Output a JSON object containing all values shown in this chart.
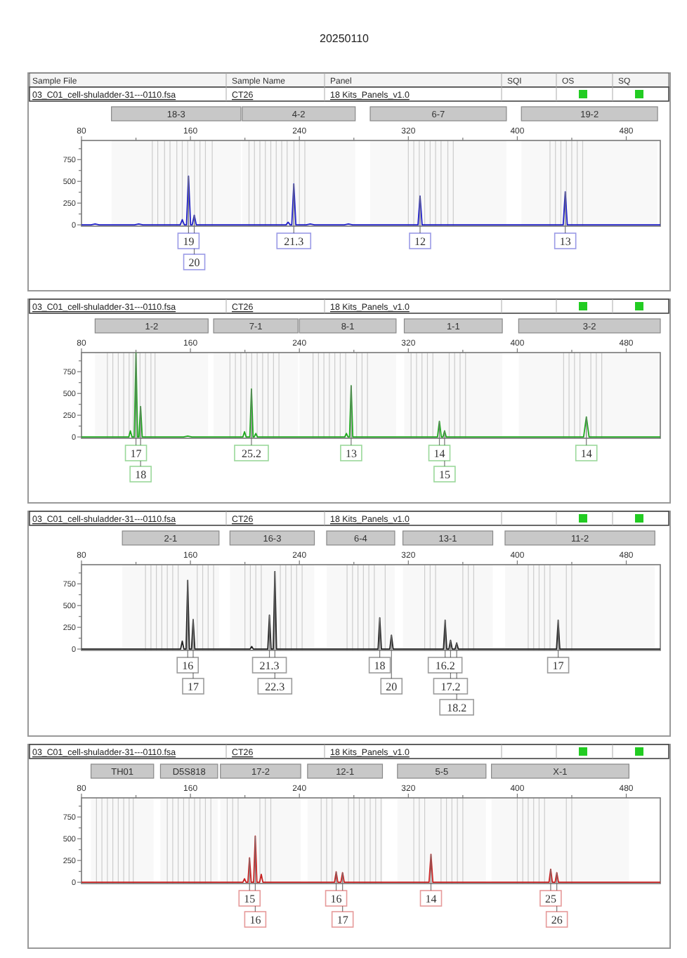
{
  "chart_data": [
    {
      "type": "line",
      "title": "20250110",
      "xlim": [
        80,
        505
      ],
      "ylim": [
        -15,
        970
      ],
      "xticks": [
        80,
        {
          "value": 120,
          "label": null
        },
        160,
        {
          "value": 200,
          "label": null
        },
        240,
        {
          "value": 280,
          "label": null
        },
        320,
        {
          "value": 360,
          "label": null
        },
        400,
        {
          "value": 440,
          "label": null
        },
        480
      ],
      "yticks": [
        0,
        {
          "value": 125,
          "label": null
        },
        250,
        {
          "value": 375,
          "label": null
        },
        500,
        {
          "value": 625,
          "label": null
        },
        750,
        {
          "value": 875,
          "label": null
        }
      ],
      "annotations": [
        "Sample File",
        "Sample Name",
        "Panel",
        "SQI",
        "OS",
        "SQ",
        "03_C01_cell-shuladder-31---0110.fsa",
        "CT26",
        "18 Kits_Panels_v1.0",
        {
          "text": "19",
          "x": 158.6,
          "y": 560
        },
        {
          "text": "20",
          "x": 162.8,
          "y": 110
        },
        {
          "text": "21.3",
          "x": 235.9,
          "y": 470
        },
        {
          "text": "12",
          "x": 328.6,
          "y": 330
        },
        {
          "text": "13",
          "x": 435.2,
          "y": 380
        }
      ],
      "bands": [
        {
          "axis": "x",
          "from": 102,
          "to": 197,
          "label": "18-3",
          "color": "#c8c8c8"
        },
        {
          "axis": "x",
          "from": 198,
          "to": 281,
          "label": "4-2",
          "color": "#c8c8c8"
        },
        {
          "axis": "x",
          "from": 292,
          "to": 392,
          "label": "6-7",
          "color": "#c8c8c8"
        },
        {
          "axis": "x",
          "from": 403,
          "to": 503,
          "label": "19-2",
          "color": "#c8c8c8"
        }
      ],
      "ref_lines": [
        {
          "axis": "x",
          "value": 132,
          "color": "#cccccc"
        },
        {
          "axis": "x",
          "value": 136,
          "color": "#cccccc"
        },
        {
          "axis": "x",
          "value": 141,
          "color": "#cccccc"
        },
        {
          "axis": "x",
          "value": 145,
          "color": "#cccccc"
        },
        {
          "axis": "x",
          "value": 150,
          "color": "#cccccc"
        },
        {
          "axis": "x",
          "value": 154,
          "color": "#cccccc"
        },
        {
          "axis": "x",
          "value": 158,
          "color": "#cccccc"
        },
        {
          "axis": "x",
          "value": 163,
          "color": "#cccccc"
        },
        {
          "axis": "x",
          "value": 167,
          "color": "#cccccc"
        },
        {
          "axis": "x",
          "value": 171,
          "color": "#cccccc"
        },
        {
          "axis": "x",
          "value": 176,
          "color": "#cccccc"
        },
        {
          "axis": "x",
          "value": 203,
          "color": "#cccccc"
        },
        {
          "axis": "x",
          "value": 207,
          "color": "#cccccc"
        },
        {
          "axis": "x",
          "value": 211,
          "color": "#cccccc"
        },
        {
          "axis": "x",
          "value": 215,
          "color": "#cccccc"
        },
        {
          "axis": "x",
          "value": 219,
          "color": "#cccccc"
        },
        {
          "axis": "x",
          "value": 223,
          "color": "#cccccc"
        },
        {
          "axis": "x",
          "value": 227,
          "color": "#cccccc"
        },
        {
          "axis": "x",
          "value": 231,
          "color": "#cccccc"
        },
        {
          "axis": "x",
          "value": 236,
          "color": "#cccccc"
        },
        {
          "axis": "x",
          "value": 240,
          "color": "#cccccc"
        },
        {
          "axis": "x",
          "value": 244,
          "color": "#cccccc"
        },
        {
          "axis": "x",
          "value": 320,
          "color": "#cccccc"
        },
        {
          "axis": "x",
          "value": 324,
          "color": "#cccccc"
        },
        {
          "axis": "x",
          "value": 328,
          "color": "#cccccc"
        },
        {
          "axis": "x",
          "value": 332,
          "color": "#cccccc"
        },
        {
          "axis": "x",
          "value": 336,
          "color": "#cccccc"
        },
        {
          "axis": "x",
          "value": 340,
          "color": "#cccccc"
        },
        {
          "axis": "x",
          "value": 344,
          "color": "#cccccc"
        },
        {
          "axis": "x",
          "value": 349,
          "color": "#cccccc"
        },
        {
          "axis": "x",
          "value": 353,
          "color": "#cccccc"
        },
        {
          "axis": "x",
          "value": 424,
          "color": "#cccccc"
        },
        {
          "axis": "x",
          "value": 428,
          "color": "#cccccc"
        },
        {
          "axis": "x",
          "value": 432,
          "color": "#cccccc"
        },
        {
          "axis": "x",
          "value": 436,
          "color": "#cccccc"
        },
        {
          "axis": "x",
          "value": 440,
          "color": "#cccccc"
        },
        {
          "axis": "x",
          "value": 444,
          "color": "#cccccc"
        },
        {
          "axis": "x",
          "value": 448,
          "color": "#cccccc"
        }
      ],
      "series": [
        {
          "color": "#2020c8",
          "x": [
            80,
            87,
            90,
            93,
            119,
            122,
            125,
            152.5,
            154,
            155.5,
            157.1,
            158.6,
            160.1,
            161.3,
            162.8,
            164.3,
            230.2,
            231.7,
            233.2,
            234.4,
            235.9,
            237.4,
            245,
            248,
            251,
            273,
            276,
            279,
            327.1,
            328.6,
            330.1,
            433.7,
            435.2,
            436.7,
            505
          ],
          "values": [
            0,
            0,
            10,
            0,
            0,
            10,
            0,
            0,
            60,
            0,
            0,
            560,
            0,
            0,
            110,
            0,
            0,
            30,
            0,
            0,
            470,
            0,
            0,
            10,
            0,
            0,
            10,
            0,
            0,
            330,
            0,
            0,
            380,
            0,
            0
          ]
        }
      ]
    },
    {
      "type": "line",
      "xlim": [
        80,
        505
      ],
      "ylim": [
        -15,
        970
      ],
      "xticks": [
        80,
        {
          "value": 120,
          "label": null
        },
        160,
        {
          "value": 200,
          "label": null
        },
        240,
        {
          "value": 280,
          "label": null
        },
        320,
        {
          "value": 360,
          "label": null
        },
        400,
        {
          "value": 440,
          "label": null
        },
        480
      ],
      "yticks": [
        0,
        {
          "value": 125,
          "label": null
        },
        250,
        {
          "value": 375,
          "label": null
        },
        500,
        {
          "value": 625,
          "label": null
        },
        750,
        {
          "value": 875,
          "label": null
        }
      ],
      "annotations": [
        "03_C01_cell-shuladder-31---0110.fsa",
        "CT26",
        "18 Kits_Panels_v1.0",
        {
          "text": "17",
          "x": 120,
          "y": 960
        },
        {
          "text": "18",
          "x": 123.4,
          "y": 350
        },
        {
          "text": "25.2",
          "x": 204.8,
          "y": 550
        },
        {
          "text": "13",
          "x": 278,
          "y": 590
        },
        {
          "text": "14",
          "x": 342.8,
          "y": 180
        },
        {
          "text": "15",
          "x": 346.6,
          "y": 70
        },
        {
          "text": "14",
          "x": 450.7,
          "y": 230
        }
      ],
      "bands": [
        {
          "axis": "x",
          "from": 90,
          "to": 173,
          "label": "1-2",
          "color": "#c8c8c8"
        },
        {
          "axis": "x",
          "from": 177,
          "to": 239,
          "label": "7-1",
          "color": "#c8c8c8"
        },
        {
          "axis": "x",
          "from": 240,
          "to": 311,
          "label": "8-1",
          "color": "#c8c8c8"
        },
        {
          "axis": "x",
          "from": 317,
          "to": 389,
          "label": "1-1",
          "color": "#c8c8c8"
        },
        {
          "axis": "x",
          "from": 401,
          "to": 505,
          "label": "3-2",
          "color": "#c8c8c8"
        }
      ],
      "ref_lines": [
        {
          "axis": "x",
          "value": 99,
          "color": "#cccccc"
        },
        {
          "axis": "x",
          "value": 103,
          "color": "#cccccc"
        },
        {
          "axis": "x",
          "value": 107,
          "color": "#cccccc"
        },
        {
          "axis": "x",
          "value": 111,
          "color": "#cccccc"
        },
        {
          "axis": "x",
          "value": 115,
          "color": "#cccccc"
        },
        {
          "axis": "x",
          "value": 118,
          "color": "#cccccc"
        },
        {
          "axis": "x",
          "value": 123,
          "color": "#cccccc"
        },
        {
          "axis": "x",
          "value": 127,
          "color": "#cccccc"
        },
        {
          "axis": "x",
          "value": 131,
          "color": "#cccccc"
        },
        {
          "axis": "x",
          "value": 134,
          "color": "#cccccc"
        },
        {
          "axis": "x",
          "value": 189,
          "color": "#cccccc"
        },
        {
          "axis": "x",
          "value": 193,
          "color": "#cccccc"
        },
        {
          "axis": "x",
          "value": 197,
          "color": "#cccccc"
        },
        {
          "axis": "x",
          "value": 201,
          "color": "#cccccc"
        },
        {
          "axis": "x",
          "value": 205,
          "color": "#cccccc"
        },
        {
          "axis": "x",
          "value": 209,
          "color": "#cccccc"
        },
        {
          "axis": "x",
          "value": 213,
          "color": "#cccccc"
        },
        {
          "axis": "x",
          "value": 217,
          "color": "#cccccc"
        },
        {
          "axis": "x",
          "value": 221,
          "color": "#cccccc"
        },
        {
          "axis": "x",
          "value": 225,
          "color": "#cccccc"
        },
        {
          "axis": "x",
          "value": 250,
          "color": "#cccccc"
        },
        {
          "axis": "x",
          "value": 254,
          "color": "#cccccc"
        },
        {
          "axis": "x",
          "value": 258,
          "color": "#cccccc"
        },
        {
          "axis": "x",
          "value": 262,
          "color": "#cccccc"
        },
        {
          "axis": "x",
          "value": 266,
          "color": "#cccccc"
        },
        {
          "axis": "x",
          "value": 270,
          "color": "#cccccc"
        },
        {
          "axis": "x",
          "value": 274,
          "color": "#cccccc"
        },
        {
          "axis": "x",
          "value": 282,
          "color": "#cccccc"
        },
        {
          "axis": "x",
          "value": 286,
          "color": "#cccccc"
        },
        {
          "axis": "x",
          "value": 290,
          "color": "#cccccc"
        },
        {
          "axis": "x",
          "value": 322,
          "color": "#cccccc"
        },
        {
          "axis": "x",
          "value": 326,
          "color": "#cccccc"
        },
        {
          "axis": "x",
          "value": 330,
          "color": "#cccccc"
        },
        {
          "axis": "x",
          "value": 334,
          "color": "#cccccc"
        },
        {
          "axis": "x",
          "value": 338,
          "color": "#cccccc"
        },
        {
          "axis": "x",
          "value": 350,
          "color": "#cccccc"
        },
        {
          "axis": "x",
          "value": 354,
          "color": "#cccccc"
        },
        {
          "axis": "x",
          "value": 358,
          "color": "#cccccc"
        },
        {
          "axis": "x",
          "value": 362,
          "color": "#cccccc"
        },
        {
          "axis": "x",
          "value": 434,
          "color": "#cccccc"
        },
        {
          "axis": "x",
          "value": 438,
          "color": "#cccccc"
        },
        {
          "axis": "x",
          "value": 442,
          "color": "#cccccc"
        },
        {
          "axis": "x",
          "value": 446,
          "color": "#cccccc"
        },
        {
          "axis": "x",
          "value": 454,
          "color": "#cccccc"
        },
        {
          "axis": "x",
          "value": 458,
          "color": "#cccccc"
        },
        {
          "axis": "x",
          "value": 462,
          "color": "#cccccc"
        }
      ],
      "series": [
        {
          "color": "#20a820",
          "x": [
            80,
            114.7,
            115.9,
            117.1,
            118.8,
            120,
            121.2,
            122.2,
            123.4,
            124.6,
            155,
            158,
            161,
            198.5,
            199.7,
            200.9,
            203.6,
            204.8,
            206,
            206.8,
            208,
            209.2,
            273.3,
            274.5,
            275.7,
            276.8,
            278,
            279.2,
            341.4,
            342.8,
            344.2,
            345.4,
            346.6,
            347.8,
            448.7,
            450.7,
            452.7,
            505
          ],
          "values": [
            0,
            0,
            70,
            0,
            0,
            960,
            0,
            0,
            350,
            0,
            0,
            10,
            0,
            0,
            60,
            0,
            0,
            550,
            0,
            0,
            40,
            0,
            0,
            40,
            0,
            0,
            590,
            0,
            0,
            180,
            0,
            0,
            70,
            0,
            0,
            230,
            0,
            0
          ]
        }
      ]
    },
    {
      "type": "line",
      "xlim": [
        80,
        505
      ],
      "ylim": [
        -15,
        970
      ],
      "xticks": [
        80,
        {
          "value": 120,
          "label": null
        },
        160,
        {
          "value": 200,
          "label": null
        },
        240,
        {
          "value": 280,
          "label": null
        },
        320,
        {
          "value": 360,
          "label": null
        },
        400,
        {
          "value": 440,
          "label": null
        },
        480
      ],
      "yticks": [
        0,
        {
          "value": 125,
          "label": null
        },
        250,
        {
          "value": 375,
          "label": null
        },
        500,
        {
          "value": 625,
          "label": null
        },
        750,
        {
          "value": 875,
          "label": null
        }
      ],
      "annotations": [
        "03_C01_cell-shuladder-31---0110.fsa",
        "CT26",
        "18 Kits_Panels_v1.0",
        {
          "text": "16",
          "x": 158,
          "y": 790
        },
        {
          "text": "17",
          "x": 162,
          "y": 340
        },
        {
          "text": "21.3",
          "x": 218,
          "y": 390
        },
        {
          "text": "22.3",
          "x": 222,
          "y": 890
        },
        {
          "text": "18",
          "x": 299,
          "y": 360
        },
        {
          "text": "20",
          "x": 307.6,
          "y": 160
        },
        {
          "text": "16.2",
          "x": 347,
          "y": 330
        },
        {
          "text": "17.2",
          "x": 351,
          "y": 100
        },
        {
          "text": "18.2",
          "x": 355.5,
          "y": 70
        },
        {
          "text": "17",
          "x": 430,
          "y": 330
        }
      ],
      "bands": [
        {
          "axis": "x",
          "from": 110,
          "to": 181,
          "label": "2-1",
          "color": "#c8c8c8"
        },
        {
          "axis": "x",
          "from": 189,
          "to": 251,
          "label": "16-3",
          "color": "#c8c8c8"
        },
        {
          "axis": "x",
          "from": 260,
          "to": 310,
          "label": "6-4",
          "color": "#c8c8c8"
        },
        {
          "axis": "x",
          "from": 316,
          "to": 382,
          "label": "13-1",
          "color": "#c8c8c8"
        },
        {
          "axis": "x",
          "from": 391,
          "to": 501,
          "label": "11-2",
          "color": "#c8c8c8"
        }
      ],
      "ref_lines": [
        {
          "axis": "x",
          "value": 127,
          "color": "#cccccc"
        },
        {
          "axis": "x",
          "value": 131,
          "color": "#cccccc"
        },
        {
          "axis": "x",
          "value": 135,
          "color": "#cccccc"
        },
        {
          "axis": "x",
          "value": 139,
          "color": "#cccccc"
        },
        {
          "axis": "x",
          "value": 143,
          "color": "#cccccc"
        },
        {
          "axis": "x",
          "value": 147,
          "color": "#cccccc"
        },
        {
          "axis": "x",
          "value": 151,
          "color": "#cccccc"
        },
        {
          "axis": "x",
          "value": 165,
          "color": "#cccccc"
        },
        {
          "axis": "x",
          "value": 169,
          "color": "#cccccc"
        },
        {
          "axis": "x",
          "value": 173,
          "color": "#cccccc"
        },
        {
          "axis": "x",
          "value": 177,
          "color": "#cccccc"
        },
        {
          "axis": "x",
          "value": 200,
          "color": "#cccccc"
        },
        {
          "axis": "x",
          "value": 204,
          "color": "#cccccc"
        },
        {
          "axis": "x",
          "value": 208,
          "color": "#cccccc"
        },
        {
          "axis": "x",
          "value": 212,
          "color": "#cccccc"
        },
        {
          "axis": "x",
          "value": 226,
          "color": "#cccccc"
        },
        {
          "axis": "x",
          "value": 230,
          "color": "#cccccc"
        },
        {
          "axis": "x",
          "value": 234,
          "color": "#cccccc"
        },
        {
          "axis": "x",
          "value": 238,
          "color": "#cccccc"
        },
        {
          "axis": "x",
          "value": 242,
          "color": "#cccccc"
        },
        {
          "axis": "x",
          "value": 275,
          "color": "#cccccc"
        },
        {
          "axis": "x",
          "value": 279,
          "color": "#cccccc"
        },
        {
          "axis": "x",
          "value": 283,
          "color": "#cccccc"
        },
        {
          "axis": "x",
          "value": 287,
          "color": "#cccccc"
        },
        {
          "axis": "x",
          "value": 291,
          "color": "#cccccc"
        },
        {
          "axis": "x",
          "value": 295,
          "color": "#cccccc"
        },
        {
          "axis": "x",
          "value": 303,
          "color": "#cccccc"
        },
        {
          "axis": "x",
          "value": 332,
          "color": "#cccccc"
        },
        {
          "axis": "x",
          "value": 336,
          "color": "#cccccc"
        },
        {
          "axis": "x",
          "value": 340,
          "color": "#cccccc"
        },
        {
          "axis": "x",
          "value": 360,
          "color": "#cccccc"
        },
        {
          "axis": "x",
          "value": 364,
          "color": "#cccccc"
        },
        {
          "axis": "x",
          "value": 368,
          "color": "#cccccc"
        },
        {
          "axis": "x",
          "value": 408,
          "color": "#cccccc"
        },
        {
          "axis": "x",
          "value": 412,
          "color": "#cccccc"
        },
        {
          "axis": "x",
          "value": 416,
          "color": "#cccccc"
        },
        {
          "axis": "x",
          "value": 420,
          "color": "#cccccc"
        },
        {
          "axis": "x",
          "value": 424,
          "color": "#cccccc"
        },
        {
          "axis": "x",
          "value": 436,
          "color": "#cccccc"
        },
        {
          "axis": "x",
          "value": 440,
          "color": "#cccccc"
        }
      ],
      "series": [
        {
          "color": "#222222",
          "x": [
            80,
            152.8,
            154,
            155.2,
            156.8,
            158,
            159.2,
            160.8,
            162,
            163.2,
            203.8,
            205,
            206.2,
            216.8,
            218,
            219.2,
            220.8,
            222,
            223.2,
            297.8,
            299,
            300.2,
            306.4,
            307.6,
            308.8,
            345.8,
            347,
            348.2,
            349.8,
            351,
            352.2,
            354.3,
            355.5,
            356.7,
            428.8,
            430,
            431.2,
            505
          ],
          "values": [
            0,
            0,
            90,
            0,
            0,
            790,
            0,
            0,
            340,
            0,
            0,
            30,
            0,
            0,
            390,
            0,
            0,
            890,
            0,
            0,
            360,
            0,
            0,
            160,
            0,
            0,
            330,
            0,
            0,
            100,
            0,
            0,
            70,
            0,
            0,
            330,
            0,
            0
          ]
        }
      ]
    },
    {
      "type": "line",
      "xlim": [
        80,
        505
      ],
      "ylim": [
        -15,
        970
      ],
      "xticks": [
        80,
        {
          "value": 120,
          "label": null
        },
        160,
        {
          "value": 200,
          "label": null
        },
        240,
        {
          "value": 280,
          "label": null
        },
        320,
        {
          "value": 360,
          "label": null
        },
        400,
        {
          "value": 440,
          "label": null
        },
        480
      ],
      "yticks": [
        0,
        {
          "value": 125,
          "label": null
        },
        250,
        {
          "value": 375,
          "label": null
        },
        500,
        {
          "value": 625,
          "label": null
        },
        750,
        {
          "value": 875,
          "label": null
        }
      ],
      "annotations": [
        "03_C01_cell-shuladder-31---0110.fsa",
        "CT26",
        "18 Kits_Panels_v1.0",
        {
          "text": "15",
          "x": 203.4,
          "y": 280
        },
        {
          "text": "16",
          "x": 207.6,
          "y": 530
        },
        {
          "text": "16",
          "x": 267,
          "y": 120
        },
        {
          "text": "17",
          "x": 271.7,
          "y": 110
        },
        {
          "text": "14",
          "x": 336.6,
          "y": 320
        },
        {
          "text": "25",
          "x": 424.5,
          "y": 150
        },
        {
          "text": "26",
          "x": 429,
          "y": 110
        }
      ],
      "bands": [
        {
          "axis": "x",
          "from": 87,
          "to": 133,
          "label": "TH01",
          "color": "#c8c8c8"
        },
        {
          "axis": "x",
          "from": 138,
          "to": 180,
          "label": "D5S818",
          "color": "#c8c8c8"
        },
        {
          "axis": "x",
          "from": 182,
          "to": 241,
          "label": "17-2",
          "color": "#c8c8c8"
        },
        {
          "axis": "x",
          "from": 246,
          "to": 301,
          "label": "12-1",
          "color": "#c8c8c8"
        },
        {
          "axis": "x",
          "from": 312,
          "to": 377,
          "label": "5-5",
          "color": "#c8c8c8"
        },
        {
          "axis": "x",
          "from": 381,
          "to": 482,
          "label": "X-1",
          "color": "#c8c8c8"
        }
      ],
      "ref_lines": [
        {
          "axis": "x",
          "value": 91,
          "color": "#cccccc"
        },
        {
          "axis": "x",
          "value": 95,
          "color": "#cccccc"
        },
        {
          "axis": "x",
          "value": 99,
          "color": "#cccccc"
        },
        {
          "axis": "x",
          "value": 103,
          "color": "#cccccc"
        },
        {
          "axis": "x",
          "value": 107,
          "color": "#cccccc"
        },
        {
          "axis": "x",
          "value": 111,
          "color": "#cccccc"
        },
        {
          "axis": "x",
          "value": 115,
          "color": "#cccccc"
        },
        {
          "axis": "x",
          "value": 118,
          "color": "#cccccc"
        },
        {
          "axis": "x",
          "value": 143,
          "color": "#cccccc"
        },
        {
          "axis": "x",
          "value": 147,
          "color": "#cccccc"
        },
        {
          "axis": "x",
          "value": 151,
          "color": "#cccccc"
        },
        {
          "axis": "x",
          "value": 155,
          "color": "#cccccc"
        },
        {
          "axis": "x",
          "value": 159,
          "color": "#cccccc"
        },
        {
          "axis": "x",
          "value": 163,
          "color": "#cccccc"
        },
        {
          "axis": "x",
          "value": 167,
          "color": "#cccccc"
        },
        {
          "axis": "x",
          "value": 171,
          "color": "#cccccc"
        },
        {
          "axis": "x",
          "value": 175,
          "color": "#cccccc"
        },
        {
          "axis": "x",
          "value": 187,
          "color": "#cccccc"
        },
        {
          "axis": "x",
          "value": 191,
          "color": "#cccccc"
        },
        {
          "axis": "x",
          "value": 195,
          "color": "#cccccc"
        },
        {
          "axis": "x",
          "value": 211,
          "color": "#cccccc"
        },
        {
          "axis": "x",
          "value": 215,
          "color": "#cccccc"
        },
        {
          "axis": "x",
          "value": 219,
          "color": "#cccccc"
        },
        {
          "axis": "x",
          "value": 256,
          "color": "#cccccc"
        },
        {
          "axis": "x",
          "value": 260,
          "color": "#cccccc"
        },
        {
          "axis": "x",
          "value": 264,
          "color": "#cccccc"
        },
        {
          "axis": "x",
          "value": 276,
          "color": "#cccccc"
        },
        {
          "axis": "x",
          "value": 280,
          "color": "#cccccc"
        },
        {
          "axis": "x",
          "value": 284,
          "color": "#cccccc"
        },
        {
          "axis": "x",
          "value": 288,
          "color": "#cccccc"
        },
        {
          "axis": "x",
          "value": 292,
          "color": "#cccccc"
        },
        {
          "axis": "x",
          "value": 296,
          "color": "#cccccc"
        },
        {
          "axis": "x",
          "value": 300,
          "color": "#cccccc"
        },
        {
          "axis": "x",
          "value": 324,
          "color": "#cccccc"
        },
        {
          "axis": "x",
          "value": 328,
          "color": "#cccccc"
        },
        {
          "axis": "x",
          "value": 332,
          "color": "#cccccc"
        },
        {
          "axis": "x",
          "value": 344,
          "color": "#cccccc"
        },
        {
          "axis": "x",
          "value": 348,
          "color": "#cccccc"
        },
        {
          "axis": "x",
          "value": 352,
          "color": "#cccccc"
        },
        {
          "axis": "x",
          "value": 356,
          "color": "#cccccc"
        },
        {
          "axis": "x",
          "value": 360,
          "color": "#cccccc"
        },
        {
          "axis": "x",
          "value": 400,
          "color": "#cccccc"
        },
        {
          "axis": "x",
          "value": 404,
          "color": "#cccccc"
        },
        {
          "axis": "x",
          "value": 408,
          "color": "#cccccc"
        },
        {
          "axis": "x",
          "value": 412,
          "color": "#cccccc"
        },
        {
          "axis": "x",
          "value": 416,
          "color": "#cccccc"
        },
        {
          "axis": "x",
          "value": 420,
          "color": "#cccccc"
        },
        {
          "axis": "x",
          "value": 436,
          "color": "#cccccc"
        },
        {
          "axis": "x",
          "value": 440,
          "color": "#cccccc"
        }
      ],
      "series": [
        {
          "color": "#c82020",
          "x": [
            80,
            198.5,
            199.7,
            200.9,
            202.2,
            203.4,
            204.6,
            206.4,
            207.6,
            208.8,
            210.8,
            212,
            213.2,
            265.8,
            267,
            268.2,
            270.5,
            271.7,
            272.9,
            335.2,
            336.6,
            338,
            423.3,
            424.5,
            425.7,
            427.8,
            429,
            430.2,
            505
          ],
          "values": [
            0,
            0,
            40,
            0,
            0,
            280,
            0,
            0,
            530,
            0,
            0,
            90,
            0,
            0,
            120,
            0,
            0,
            110,
            0,
            0,
            320,
            0,
            0,
            150,
            0,
            0,
            110,
            0,
            0
          ]
        }
      ]
    }
  ]
}
